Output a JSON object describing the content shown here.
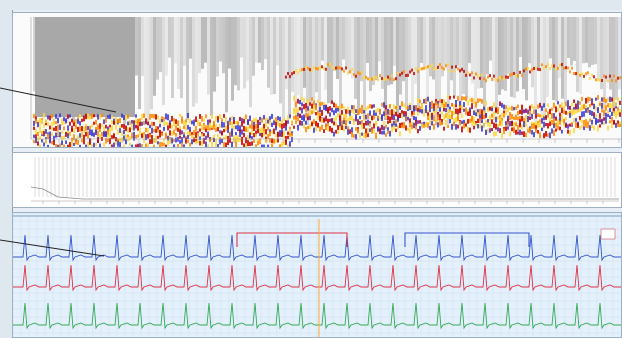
{
  "app": {
    "accent": "#cc3333",
    "spectrogram_colors": [
      "#b0b0b0",
      "#ffd83a",
      "#ff8a00",
      "#c80000",
      "#3a3ae0"
    ],
    "ecg_lead_colors": [
      "#3355cc",
      "#dd3344",
      "#33aa55"
    ],
    "marker_color": "#ffaa33"
  },
  "panels": {
    "spectrogram": {
      "name": "spectrogram-panel"
    },
    "trend": {
      "name": "trend-panel"
    },
    "ecg": {
      "name": "ecg-panel",
      "leads": [
        {
          "name": "lead-1"
        },
        {
          "name": "lead-2"
        },
        {
          "name": "lead-3"
        }
      ],
      "highlights": [
        {
          "color": "#dd3344"
        },
        {
          "color": "#3355cc"
        }
      ]
    }
  },
  "callouts": [
    {
      "name": "spectrogram-callout"
    },
    {
      "name": "ecg-callout"
    }
  ]
}
